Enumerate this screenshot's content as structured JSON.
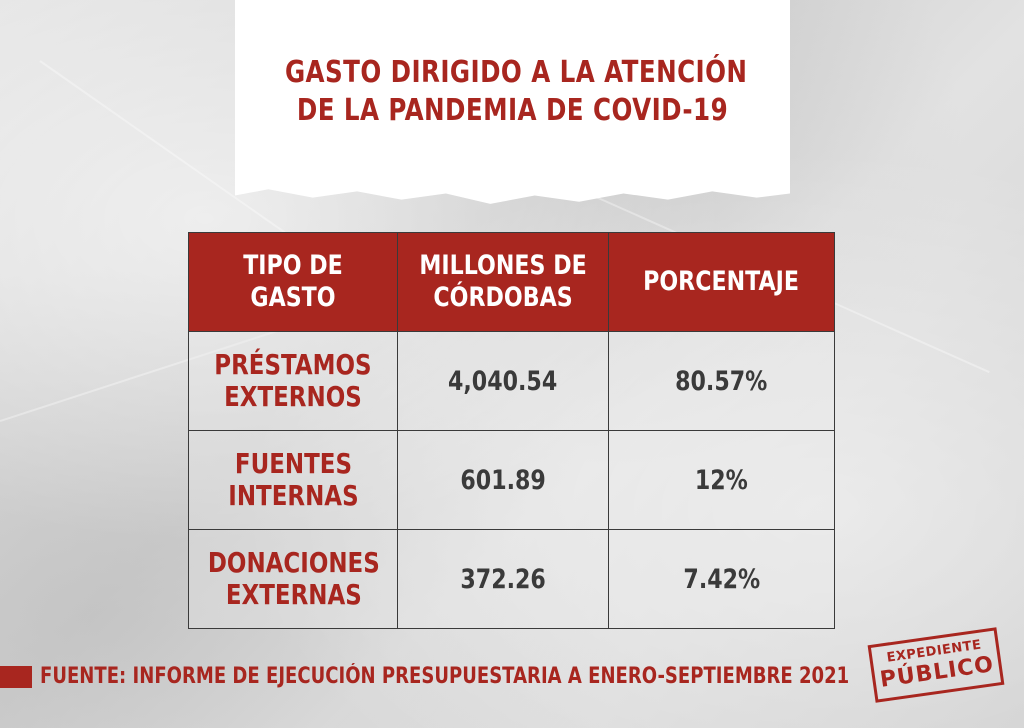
{
  "title": {
    "line1": "GASTO DIRIGIDO A LA ATENCIÓN",
    "line2": "DE LA PANDEMIA DE COVID-19"
  },
  "table": {
    "headers": {
      "col1": "TIPO DE GASTO",
      "col2_line1": "MILLONES DE",
      "col2_line2": "CÓRDOBAS",
      "col3": "PORCENTAJE"
    },
    "rows": [
      {
        "type_line1": "PRÉSTAMOS",
        "type_line2": "EXTERNOS",
        "amount": "4,040.54",
        "percent": "80.57%"
      },
      {
        "type_line1": "FUENTES",
        "type_line2": "INTERNAS",
        "amount": "601.89",
        "percent": "12%"
      },
      {
        "type_line1": "DONACIONES",
        "type_line2": "EXTERNAS",
        "amount": "372.26",
        "percent": "7.42%"
      }
    ]
  },
  "source": "FUENTE: INFORME DE EJECUCIÓN PRESUPUESTARIA A ENERO-SEPTIEMBRE 2021",
  "logo": {
    "line1": "EXPEDIENTE",
    "line2": "PÚBLICO"
  },
  "colors": {
    "accent": "#a8261f",
    "text_dark": "#3a3a3a",
    "paper": "#dcdcdc"
  }
}
